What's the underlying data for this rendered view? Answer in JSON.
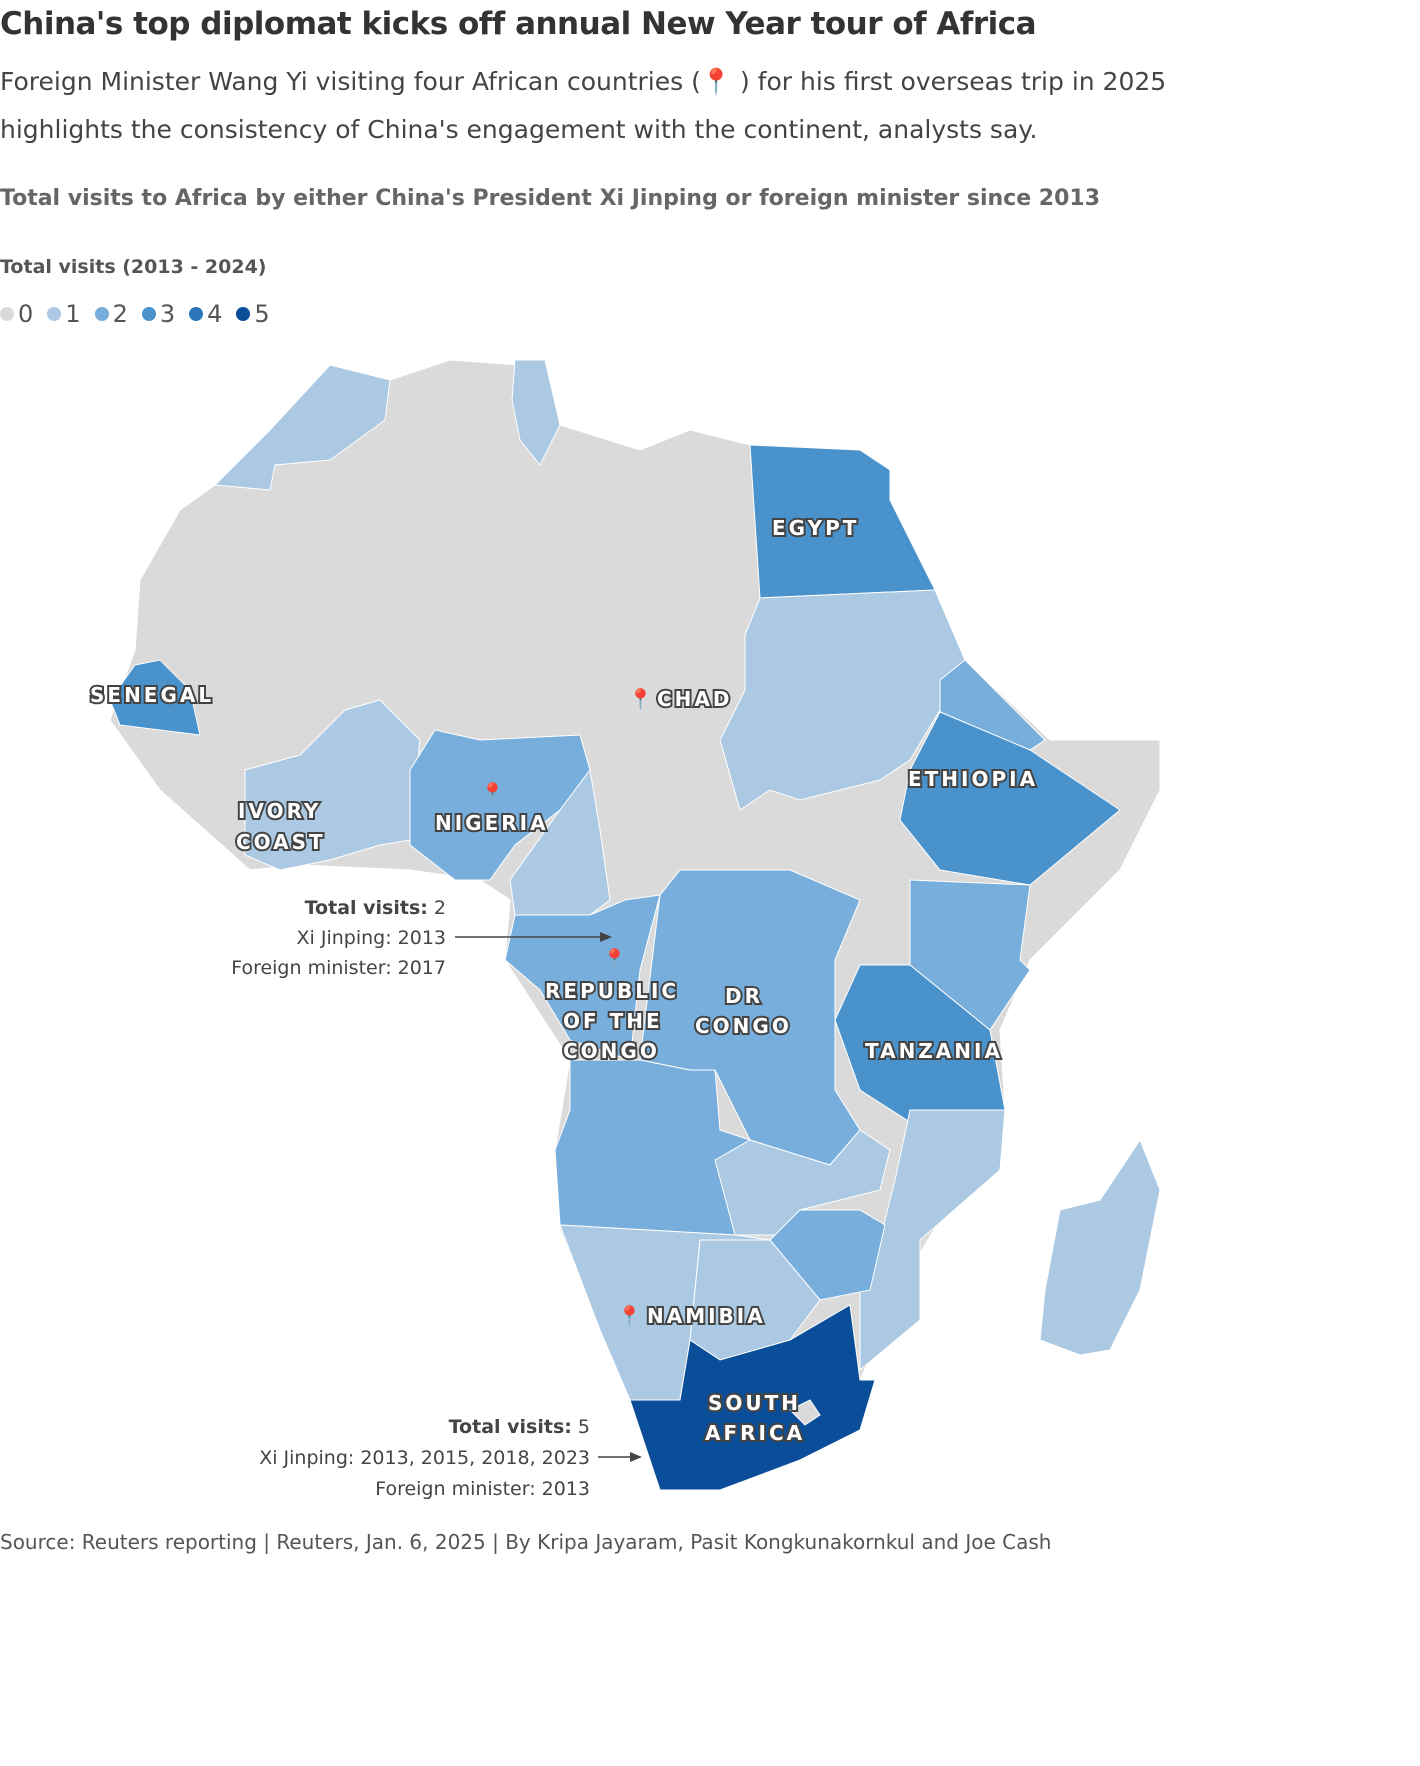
{
  "title": "China's top diplomat kicks off annual New Year tour of Africa",
  "subtitle_a": "Foreign Minister Wang Yi visiting four African countries (",
  "subtitle_pin": "📍",
  "subtitle_b": " ) for his first overseas trip in 2025 highlights the consistency of China's engagement with the continent, analysts say.",
  "heading": "Total visits to Africa by either China's President Xi Jinping or foreign minister since 2013",
  "legend": {
    "title": "Total visits (2013 - 2024)",
    "items": [
      {
        "label": "0",
        "color": "#dadada"
      },
      {
        "label": "1",
        "color": "#abc9e2"
      },
      {
        "label": "2",
        "color": "#78aedb"
      },
      {
        "label": "3",
        "color": "#4a92cb"
      },
      {
        "label": "4",
        "color": "#2c77bc"
      },
      {
        "label": "5",
        "color": "#0a4e99"
      }
    ]
  },
  "countries": {
    "egypt": "EGYPT",
    "senegal": "SENEGAL",
    "chad": "CHAD",
    "ethiopia": "ETHIOPIA",
    "ivory1": "IVORY",
    "ivory2": "COAST",
    "nigeria": "NIGERIA",
    "roc1": "REPUBLIC",
    "roc2": "OF THE",
    "roc3": "CONGO",
    "drc1": "DR",
    "drc2": "CONGO",
    "tanzania": "TANZANIA",
    "namibia": "NAMIBIA",
    "sa1": "SOUTH",
    "sa2": "AFRICA"
  },
  "annotations": {
    "congo": {
      "total_label": "Total visits:",
      "total": "2",
      "xi": "Xi Jinping: 2013",
      "fm": "Foreign minister: 2017"
    },
    "south_africa": {
      "total_label": "Total visits:",
      "total": "5",
      "xi": "Xi Jinping: 2013, 2015, 2018, 2023",
      "fm": "Foreign minister: 2013"
    }
  },
  "source": "Source: Reuters reporting | Reuters, Jan. 6, 2025 | By Kripa Jayaram, Pasit Kongkunakornkul and Joe Cash"
}
